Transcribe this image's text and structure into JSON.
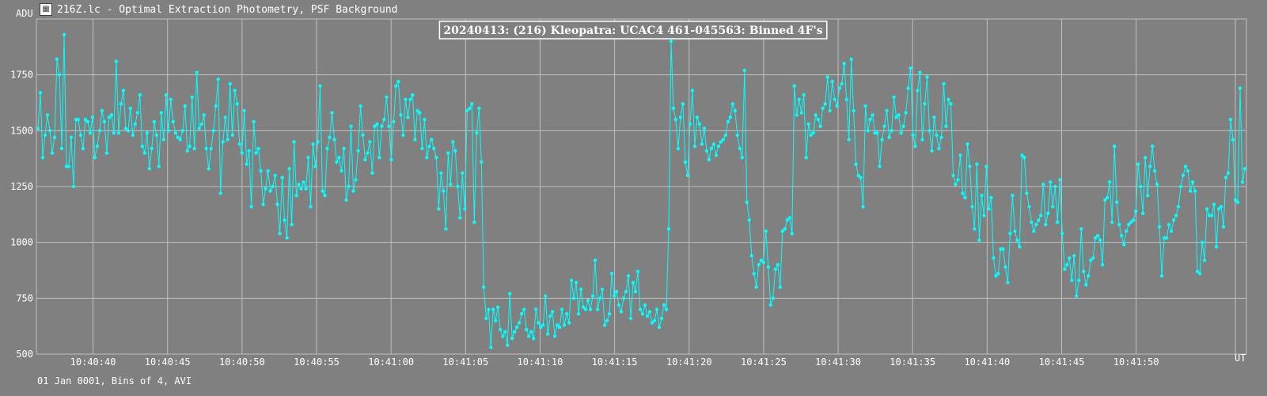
{
  "window": {
    "title": "216Z.lc - Optimal Extraction Photometry, PSF Background",
    "icon": "lightcurve-icon"
  },
  "footer": {
    "text": "01 Jan 0001, Bins of 4, AVI"
  },
  "colors": {
    "background": "#808080",
    "grid": "#c0c0c0",
    "series": "#00ffff",
    "text": "#ffffff",
    "title_box_bg": "#808080"
  },
  "chart_data": {
    "type": "line",
    "title": "20240413: (216) Kleopatra: UCAC4 461-045563: Binned 4F's",
    "ylabel": "ADU",
    "xlabel": "UT",
    "ylim": [
      500,
      2000
    ],
    "yticks": [
      500,
      750,
      1000,
      1250,
      1500,
      1750
    ],
    "xlim": [
      "10:40:36.2",
      "10:41:57.4"
    ],
    "xticks": [
      "10:40:40",
      "10:40:45",
      "10:40:50",
      "10:40:55",
      "10:41:00",
      "10:41:05",
      "10:41:10",
      "10:41:15",
      "10:41:20",
      "10:41:25",
      "10:41:30",
      "10:41:35",
      "10:41:40",
      "10:41:45",
      "10:41:50"
    ],
    "grid": true,
    "marker": "dot",
    "series": [
      {
        "values": [
          1510,
          1670,
          1380,
          1480,
          1570,
          1500,
          1400,
          1470,
          1820,
          1750,
          1420,
          1930,
          1340,
          1340,
          1470,
          1250,
          1550,
          1550,
          1480,
          1420,
          1550,
          1540,
          1490,
          1560,
          1380,
          1430,
          1500,
          1590,
          1540,
          1400,
          1560,
          1570,
          1490,
          1810,
          1490,
          1620,
          1680,
          1510,
          1500,
          1600,
          1480,
          1530,
          1580,
          1660,
          1430,
          1400,
          1490,
          1330,
          1420,
          1540,
          1480,
          1340,
          1580,
          1460,
          1660,
          1500,
          1640,
          1540,
          1490,
          1470,
          1460,
          1500,
          1610,
          1410,
          1430,
          1650,
          1420,
          1760,
          1510,
          1530,
          1570,
          1420,
          1330,
          1420,
          1500,
          1610,
          1730,
          1220,
          1450,
          1560,
          1460,
          1710,
          1480,
          1680,
          1620,
          1440,
          1400,
          1590,
          1350,
          1410,
          1160,
          1540,
          1400,
          1420,
          1320,
          1170,
          1240,
          1320,
          1230,
          1250,
          1300,
          1170,
          1040,
          1290,
          1100,
          1020,
          1330,
          1080,
          1450,
          1210,
          1260,
          1240,
          1270,
          1240,
          1380,
          1160,
          1440,
          1340,
          1450,
          1700,
          1230,
          1210,
          1420,
          1470,
          1580,
          1460,
          1360,
          1380,
          1320,
          1420,
          1190,
          1250,
          1520,
          1230,
          1280,
          1410,
          1610,
          1480,
          1370,
          1400,
          1450,
          1310,
          1520,
          1530,
          1380,
          1520,
          1550,
          1650,
          1520,
          1370,
          1540,
          1700,
          1720,
          1570,
          1480,
          1640,
          1560,
          1640,
          1660,
          1460,
          1590,
          1580,
          1420,
          1550,
          1380,
          1430,
          1460,
          1420,
          1380,
          1150,
          1310,
          1230,
          1060,
          1400,
          1260,
          1450,
          1410,
          1250,
          1110,
          1310,
          1150,
          1590,
          1600,
          1620,
          1090,
          1490,
          1600,
          1360,
          800,
          660,
          700,
          530,
          700,
          650,
          710,
          610,
          580,
          600,
          540,
          770,
          570,
          600,
          620,
          640,
          680,
          700,
          610,
          580,
          600,
          570,
          700,
          640,
          620,
          630,
          760,
          590,
          670,
          690,
          580,
          630,
          620,
          700,
          630,
          680,
          640,
          830,
          750,
          820,
          680,
          790,
          710,
          700,
          740,
          700,
          760,
          920,
          700,
          750,
          790,
          630,
          650,
          680,
          860,
          760,
          780,
          720,
          690,
          750,
          780,
          850,
          660,
          820,
          780,
          870,
          700,
          680,
          720,
          670,
          690,
          640,
          650,
          700,
          620,
          660,
          720,
          700,
          1060,
          1900,
          1600,
          1550,
          1420,
          1560,
          1620,
          1360,
          1300,
          1530,
          1680,
          1430,
          1560,
          1530,
          1440,
          1510,
          1410,
          1370,
          1420,
          1440,
          1390,
          1430,
          1450,
          1460,
          1480,
          1540,
          1560,
          1620,
          1590,
          1480,
          1420,
          1380,
          1770,
          1180,
          1100,
          940,
          860,
          800,
          900,
          920,
          910,
          1050,
          890,
          720,
          750,
          880,
          900,
          800,
          1050,
          1060,
          1100,
          1110,
          1040,
          1700,
          1570,
          1640,
          1580,
          1660,
          1380,
          1530,
          1480,
          1490,
          1570,
          1550,
          1520,
          1600,
          1620,
          1740,
          1590,
          1720,
          1640,
          1610,
          1690,
          1710,
          1800,
          1640,
          1460,
          1820,
          1590,
          1350,
          1300,
          1290,
          1160,
          1610,
          1500,
          1550,
          1570,
          1490,
          1490,
          1340,
          1460,
          1520,
          1590,
          1470,
          1500,
          1650,
          1560,
          1570,
          1490,
          1520,
          1580,
          1690,
          1780,
          1480,
          1430,
          1680,
          1760,
          1460,
          1620,
          1740,
          1500,
          1410,
          1560,
          1480,
          1420,
          1470,
          1710,
          1520,
          1640,
          1620,
          1300,
          1260,
          1280,
          1390,
          1220,
          1200,
          1440,
          1340,
          1160,
          1060,
          1350,
          1010,
          1210,
          1120,
          1340,
          1150,
          1200,
          930,
          850,
          860,
          970,
          970,
          890,
          820,
          1040,
          1210,
          1050,
          1010,
          980,
          1390,
          1380,
          1220,
          1160,
          1090,
          1050,
          1080,
          1100,
          1120,
          1260,
          1080,
          1130,
          1270,
          1160,
          1250,
          1090,
          1280,
          1040,
          880,
          900,
          930,
          830,
          940,
          760,
          830,
          1060,
          870,
          810,
          850,
          920,
          930,
          1020,
          1030,
          1010,
          900,
          1190,
          1200,
          1270,
          1090,
          1430,
          1180,
          1080,
          1030,
          990,
          1050,
          1080,
          1090,
          1100,
          1140,
          1350,
          1250,
          1130,
          1380,
          1210,
          1340,
          1430,
          1320,
          1260,
          1070,
          850,
          1020,
          1020,
          1080,
          1050,
          1100,
          1120,
          1160,
          1250,
          1300,
          1340,
          1320,
          1230,
          1270,
          1230,
          870,
          860,
          1000,
          920,
          1150,
          1120,
          1120,
          1170,
          980,
          1150,
          1160,
          1070,
          1290,
          1310,
          1550,
          1460,
          1190,
          1180,
          1690,
          1270,
          1330
        ]
      }
    ]
  }
}
